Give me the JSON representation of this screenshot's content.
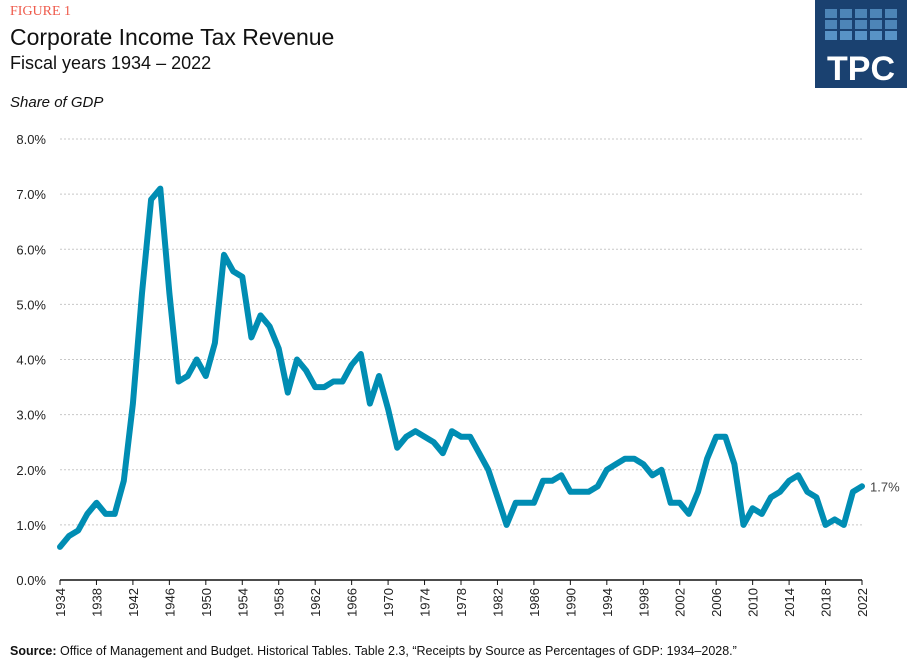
{
  "header": {
    "figure_label": "FIGURE 1",
    "title": "Corporate Income Tax Revenue",
    "subtitle": "Fiscal years 1934 – 2022"
  },
  "logo": {
    "text": "TPC",
    "bg_color": "#1a4170",
    "tile_color": "#5f9ccf"
  },
  "source": {
    "label": "Source:",
    "text": "Office of Management and Budget. Historical Tables. Table 2.3, “Receipts by Source as Percentages of GDP: 1934–2028.”"
  },
  "chart_data": {
    "type": "line",
    "title": "Corporate Income Tax Revenue",
    "ylabel": "Share of GDP",
    "xlabel": "",
    "ylim": [
      0,
      8
    ],
    "xlim": [
      1934,
      2022
    ],
    "yticks": [
      "0.0%",
      "1.0%",
      "2.0%",
      "3.0%",
      "4.0%",
      "5.0%",
      "6.0%",
      "7.0%",
      "8.0%"
    ],
    "xticks": [
      "1934",
      "1938",
      "1942",
      "1946",
      "1950",
      "1954",
      "1958",
      "1962",
      "1966",
      "1970",
      "1974",
      "1978",
      "1982",
      "1986",
      "1990",
      "1994",
      "1998",
      "2002",
      "2006",
      "2010",
      "2014",
      "2018",
      "2022"
    ],
    "grid": "horizontal dotted",
    "line_color": "#008db3",
    "end_label": "1.7%",
    "x_start": 1934,
    "values": [
      0.6,
      0.8,
      0.9,
      1.2,
      1.4,
      1.2,
      1.2,
      1.8,
      3.2,
      5.2,
      6.9,
      7.1,
      5.2,
      3.6,
      3.7,
      4.0,
      3.7,
      4.3,
      5.9,
      5.6,
      5.5,
      4.4,
      4.8,
      4.6,
      4.2,
      3.4,
      4.0,
      3.8,
      3.5,
      3.5,
      3.6,
      3.6,
      3.9,
      4.1,
      3.2,
      3.7,
      3.1,
      2.4,
      2.6,
      2.7,
      2.6,
      2.5,
      2.3,
      2.7,
      2.6,
      2.6,
      2.3,
      2.0,
      1.5,
      1.0,
      1.4,
      1.4,
      1.4,
      1.8,
      1.8,
      1.9,
      1.6,
      1.6,
      1.6,
      1.7,
      2.0,
      2.1,
      2.2,
      2.2,
      2.1,
      1.9,
      2.0,
      1.4,
      1.4,
      1.2,
      1.6,
      2.2,
      2.6,
      2.6,
      2.1,
      1.0,
      1.3,
      1.2,
      1.5,
      1.6,
      1.8,
      1.9,
      1.6,
      1.5,
      1.0,
      1.1,
      1.0,
      1.6,
      1.7
    ]
  }
}
